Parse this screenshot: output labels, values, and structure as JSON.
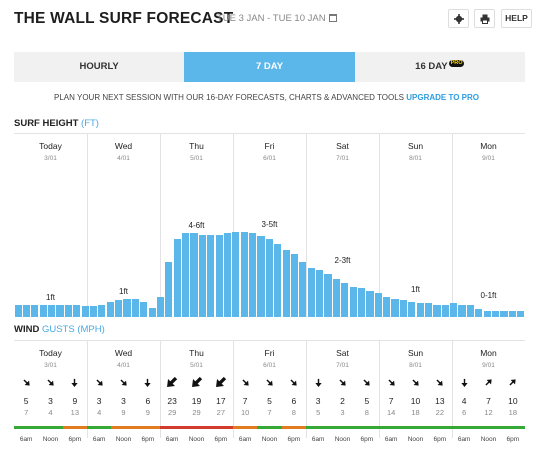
{
  "header": {
    "title": "THE WALL SURF FORECAST",
    "date_range": "TUE 3 JAN - TUE 10 JAN",
    "help_label": "HELP",
    "icons": [
      "calendar-icon",
      "gear-icon",
      "print-icon"
    ]
  },
  "tabs": [
    {
      "label": "HOURLY",
      "active": false
    },
    {
      "label": "7 DAY",
      "active": true
    },
    {
      "label": "16 DAY",
      "active": false,
      "badge": "PRO"
    }
  ],
  "promo": {
    "text": "PLAN YOUR NEXT SESSION WITH OUR 16-DAY FORECASTS, CHARTS & ADVANCED TOOLS",
    "link": "UPGRADE TO PRO"
  },
  "surf": {
    "title": "SURF HEIGHT",
    "unit": "(FT)",
    "days": [
      {
        "name": "Today",
        "date": "3/01",
        "label": "1ft"
      },
      {
        "name": "Wed",
        "date": "4/01",
        "label": "1ft"
      },
      {
        "name": "Thu",
        "date": "5/01",
        "label": "4-6ft"
      },
      {
        "name": "Fri",
        "date": "6/01",
        "label": "3-5ft"
      },
      {
        "name": "Sat",
        "date": "7/01",
        "label": "2-3ft"
      },
      {
        "name": "Sun",
        "date": "8/01",
        "label": "1ft"
      },
      {
        "name": "Mon",
        "date": "9/01",
        "label": "0-1ft"
      }
    ],
    "heights_ft": [
      0.8,
      0.8,
      0.8,
      0.8,
      0.8,
      0.8,
      0.8,
      0.8,
      0.7,
      0.7,
      0.8,
      1.0,
      1.1,
      1.2,
      1.2,
      1.0,
      0.6,
      1.3,
      3.6,
      5.1,
      5.5,
      5.5,
      5.4,
      5.4,
      5.4,
      5.5,
      5.6,
      5.6,
      5.5,
      5.3,
      5.1,
      4.8,
      4.4,
      4.1,
      3.6,
      3.2,
      3.1,
      2.8,
      2.5,
      2.2,
      2.0,
      1.9,
      1.7,
      1.6,
      1.3,
      1.2,
      1.1,
      1.0,
      0.9,
      0.9,
      0.8,
      0.8,
      0.9,
      0.8,
      0.8,
      0.5,
      0.4,
      0.4,
      0.4,
      0.4,
      0.4
    ],
    "y_max_ft": 12
  },
  "wind": {
    "title": "WIND",
    "subtitle": "GUSTS",
    "unit": "(MPH)",
    "times": [
      "6am",
      "Noon",
      "6pm"
    ],
    "speeds": [
      5,
      3,
      9,
      3,
      3,
      6,
      23,
      19,
      17,
      7,
      5,
      6,
      3,
      2,
      5,
      7,
      10,
      13,
      4,
      7,
      10
    ],
    "gusts": [
      7,
      4,
      13,
      4,
      9,
      9,
      29,
      29,
      27,
      10,
      7,
      8,
      5,
      3,
      8,
      14,
      18,
      22,
      6,
      12,
      18
    ],
    "directions_deg": [
      135,
      135,
      180,
      135,
      135,
      180,
      225,
      225,
      225,
      135,
      135,
      135,
      180,
      135,
      135,
      135,
      135,
      135,
      180,
      45,
      45
    ],
    "colors": [
      "#34a935",
      "#34a935",
      "#e27c1e",
      "#34a935",
      "#e27c1e",
      "#e27c1e",
      "#d33b2c",
      "#d33b2c",
      "#d33b2c",
      "#e27c1e",
      "#34a935",
      "#e27c1e",
      "#34a935",
      "#34a935",
      "#34a935",
      "#34a935",
      "#34a935",
      "#34a935",
      "#34a935",
      "#34a935",
      "#34a935"
    ]
  }
}
